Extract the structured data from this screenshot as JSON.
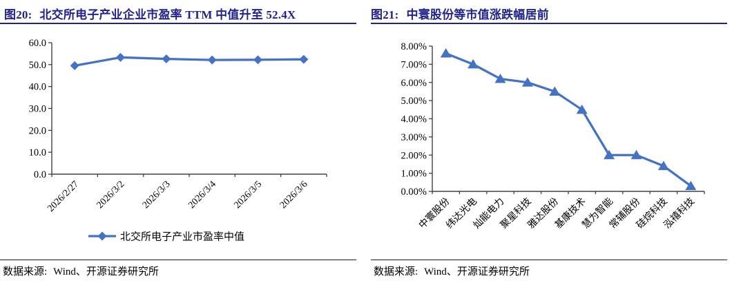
{
  "colors": {
    "title": "#22228F",
    "line": "#4472C4",
    "axis": "#404040",
    "text": "#000000"
  },
  "panels": [
    {
      "figure_label": "图20:",
      "title": "北交所电子产业企业市盈率 TTM 中值升至 52.4X",
      "source_label": "数据来源:",
      "source_text": "Wind、开源证券研究所"
    },
    {
      "figure_label": "图21:",
      "title": "中寰股份等市值涨跌幅居前",
      "source_label": "数据来源:",
      "source_text": "Wind、开源证券研究所"
    }
  ],
  "chart_data": [
    {
      "type": "line",
      "title": "北交所电子产业企业市盈率TTM中值升至52.4X",
      "categories": [
        "2026/2/27",
        "2026/3/2",
        "2026/3/3",
        "2026/3/4",
        "2026/3/5",
        "2026/3/6"
      ],
      "series": [
        {
          "name": "北交所电子产业市盈率中值",
          "values": [
            49.5,
            53.3,
            52.6,
            52.1,
            52.2,
            52.4
          ]
        }
      ],
      "ylim": [
        0,
        60
      ],
      "ytick_step": 10,
      "ytick_format": "0.0",
      "marker": "diamond",
      "grid": false,
      "legend_position": "bottom"
    },
    {
      "type": "line",
      "title": "中寰股份等市值涨跌幅居前",
      "categories": [
        "中寰股份",
        "纬达光电",
        "灿能电力",
        "聚星科技",
        "雅达股份",
        "基康技术",
        "慧为智能",
        "常辅股份",
        "硅烷科技",
        "泓禧科技"
      ],
      "series": [
        {
          "name": "",
          "values": [
            7.6,
            7.0,
            6.2,
            6.0,
            5.5,
            4.5,
            2.0,
            2.0,
            1.4,
            0.3
          ]
        }
      ],
      "ylim": [
        0,
        8
      ],
      "ytick_step": 1,
      "ytick_format": "0.00%",
      "marker": "triangle",
      "grid": false,
      "legend_position": "none"
    }
  ]
}
